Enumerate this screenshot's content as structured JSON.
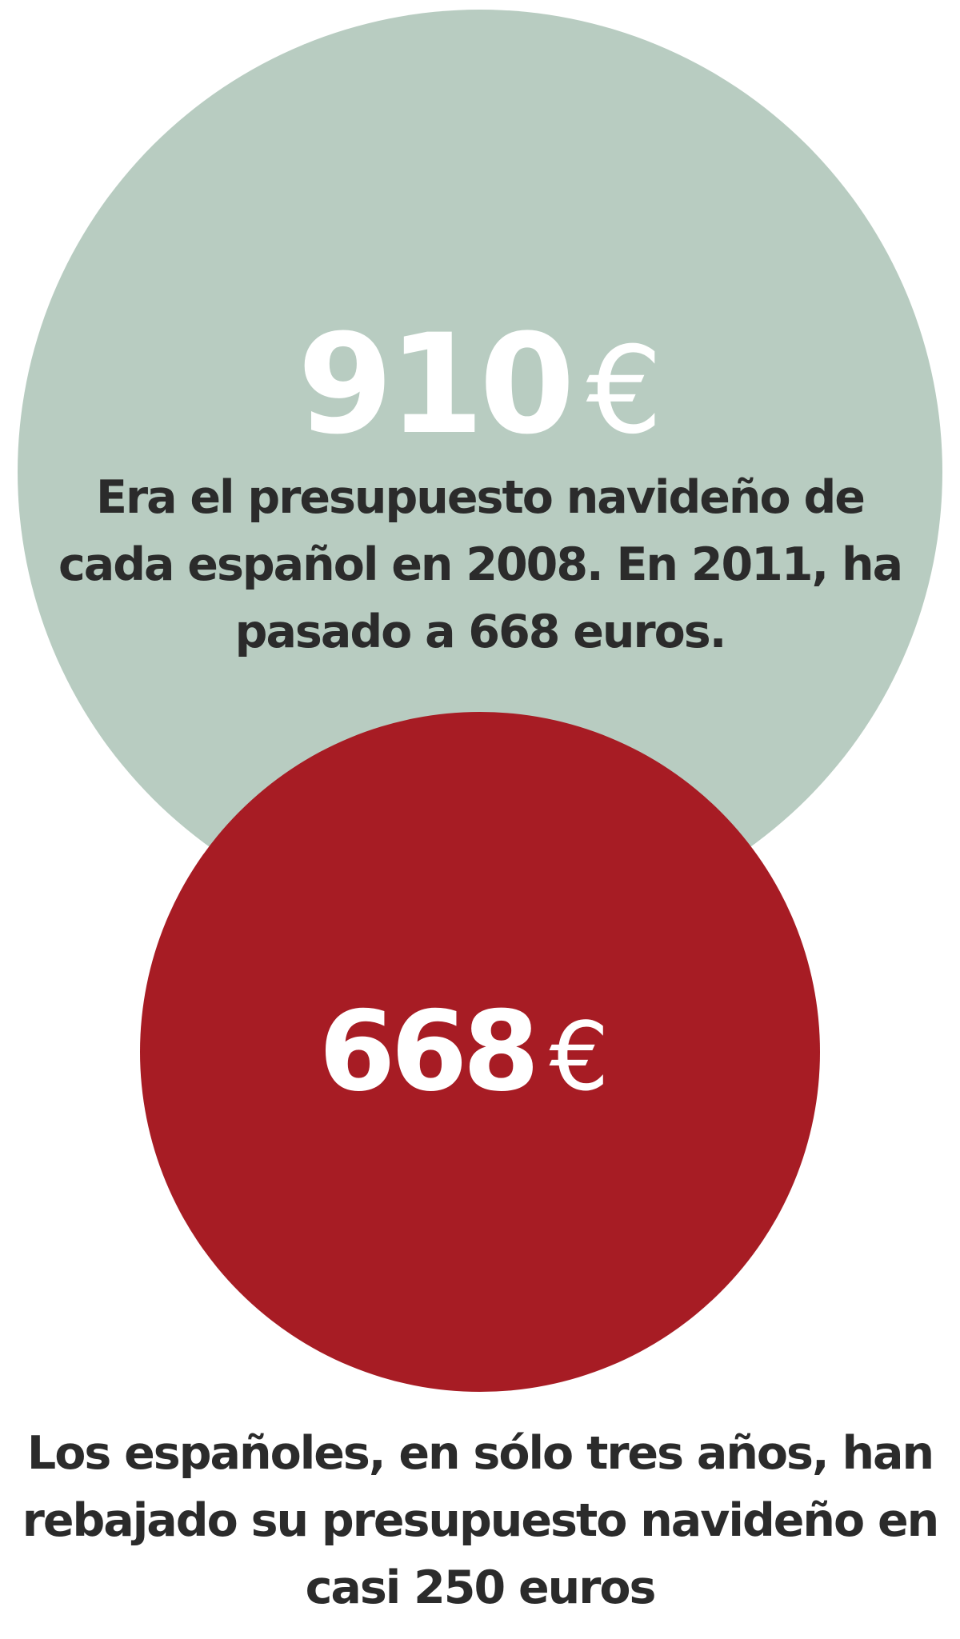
{
  "chart_data": {
    "type": "bubble",
    "title": "",
    "series": [
      {
        "year": 2008,
        "value": 910,
        "unit": "€",
        "label": "910",
        "color": "#b8ccc1",
        "caption": "Era el presupuesto navideño de cada español en 2008. En 2011, ha pasado a 668 euros."
      },
      {
        "year": 2011,
        "value": 668,
        "unit": "€",
        "label": "668",
        "color": "#a71c24"
      }
    ],
    "footnote": "Los españoles, en sólo tres años, han rebajado su presupuesto navideño en casi 250 euros"
  }
}
